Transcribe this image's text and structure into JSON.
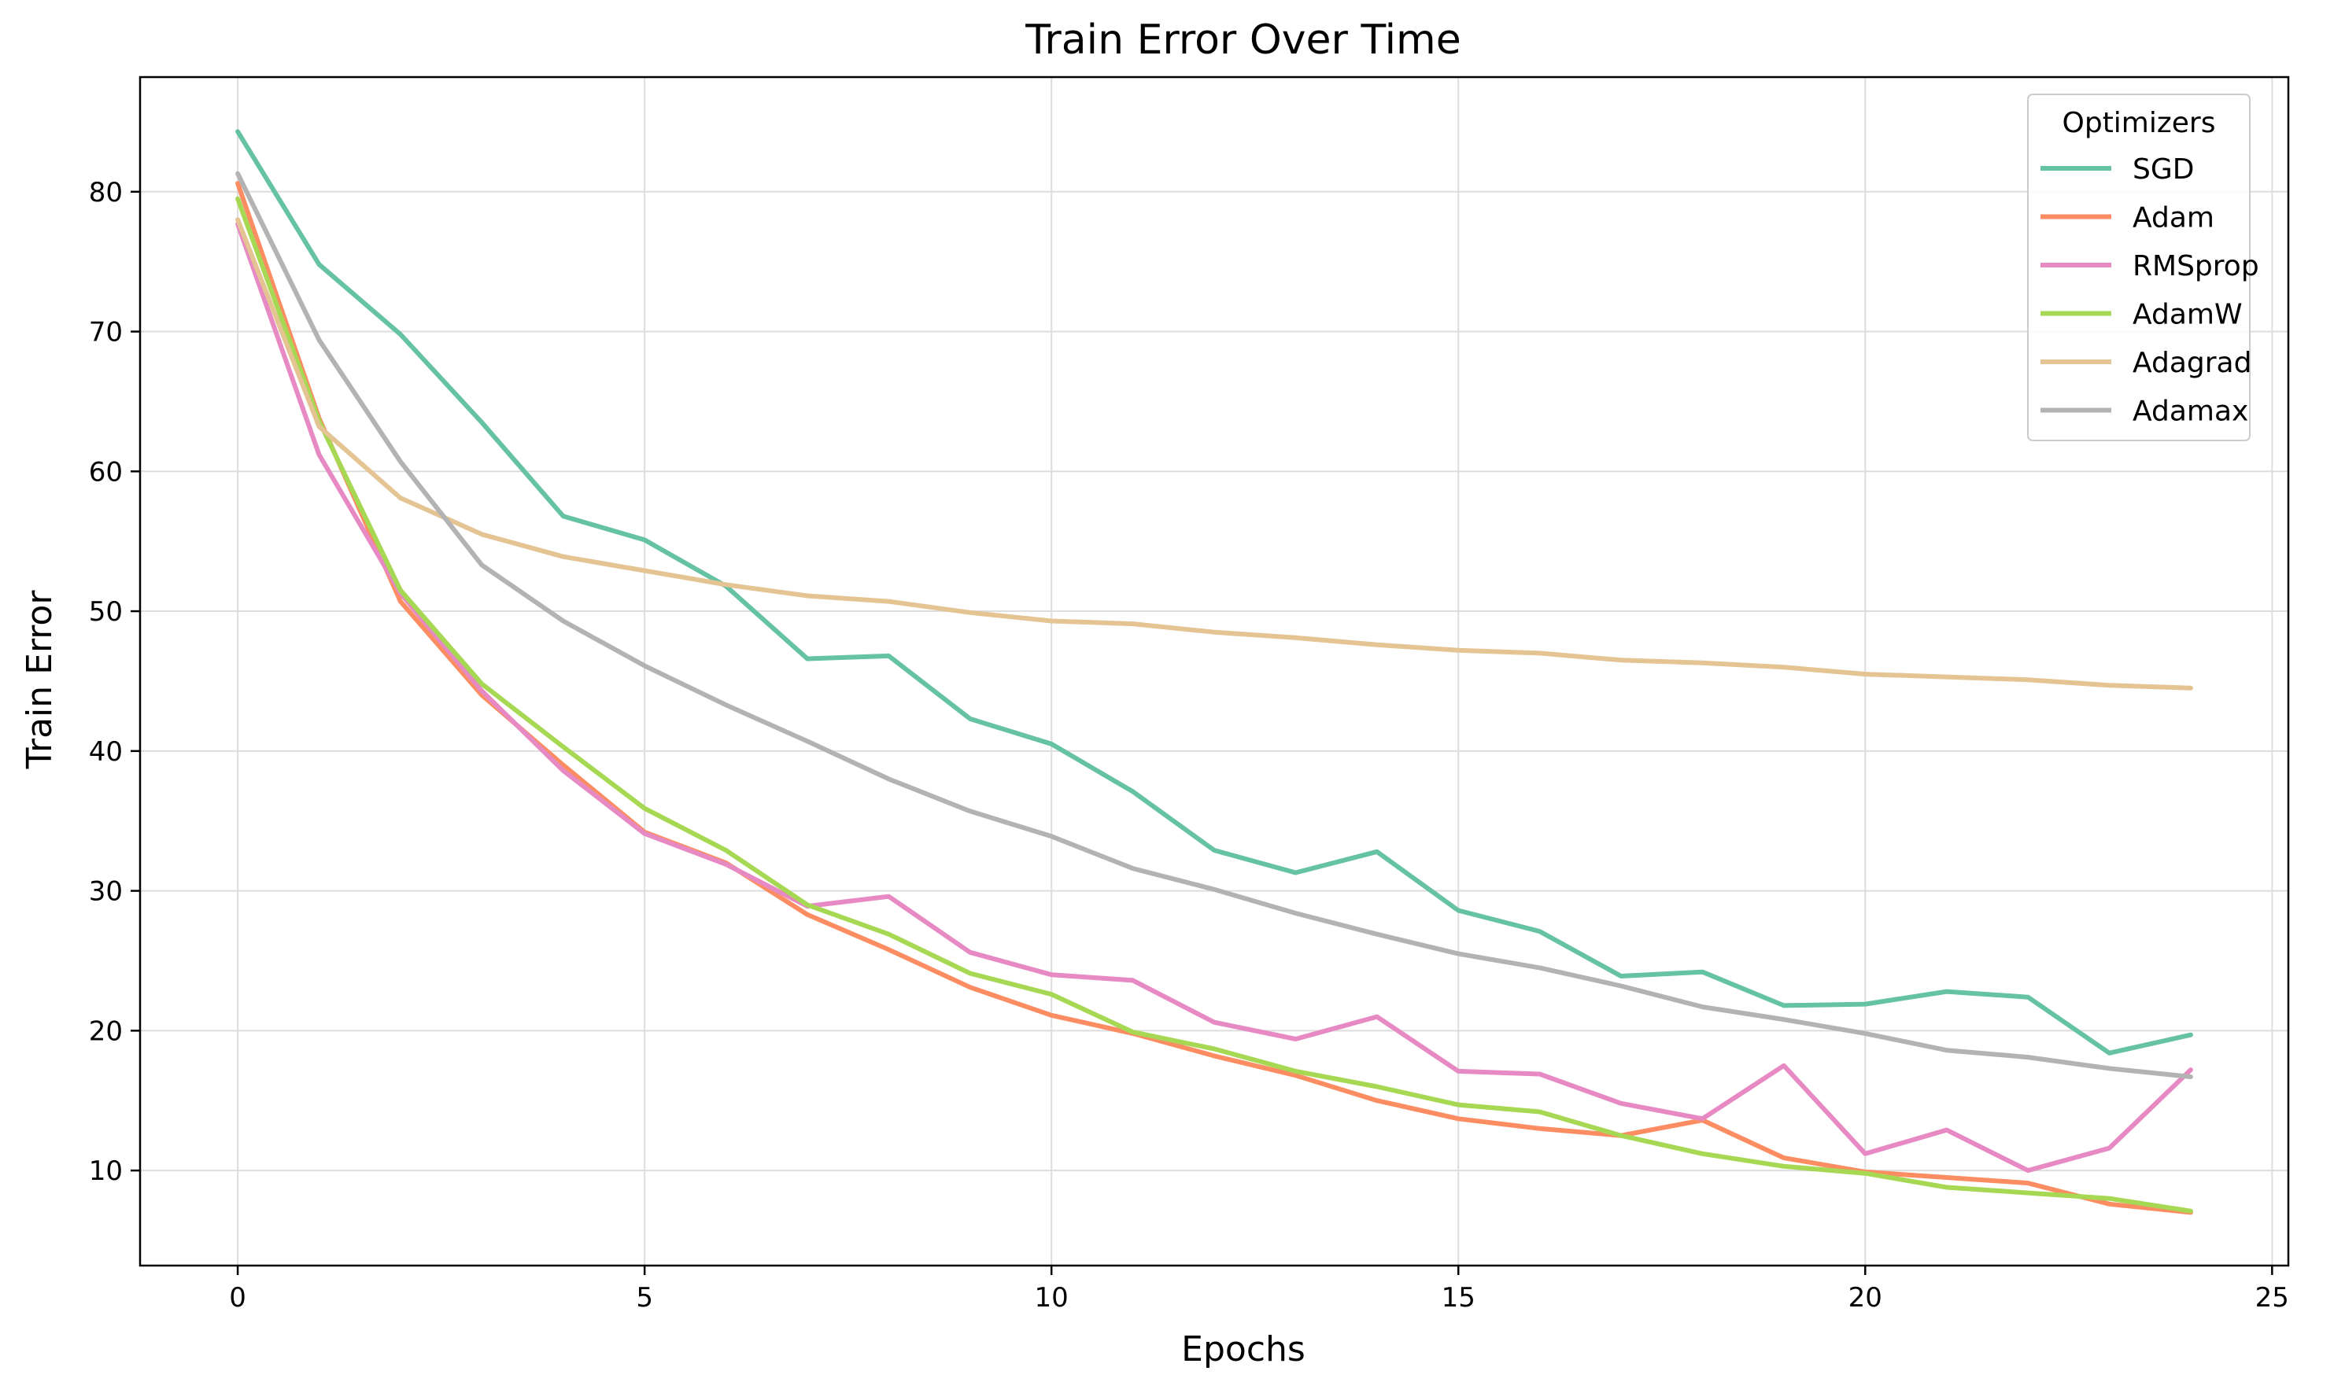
{
  "chart_data": {
    "type": "line",
    "title": "Train Error Over Time",
    "xlabel": "Epochs",
    "ylabel": "Train Error",
    "xlim": [
      -1.2,
      25.2
    ],
    "ylim": [
      3.2,
      88.2
    ],
    "x_ticks": [
      0,
      5,
      10,
      15,
      20,
      25
    ],
    "y_ticks": [
      10,
      20,
      30,
      40,
      50,
      60,
      70,
      80
    ],
    "grid": true,
    "legend_title": "Optimizers",
    "legend_position": "top-right",
    "x": [
      0,
      1,
      2,
      3,
      4,
      5,
      6,
      7,
      8,
      9,
      10,
      11,
      12,
      13,
      14,
      15,
      16,
      17,
      18,
      19,
      20,
      21,
      22,
      23,
      24
    ],
    "series": [
      {
        "name": "SGD",
        "color": "#66c2a5",
        "values": [
          84.3,
          74.8,
          69.8,
          63.5,
          56.8,
          55.1,
          51.8,
          46.6,
          46.8,
          42.3,
          40.5,
          37.1,
          32.9,
          31.3,
          32.8,
          28.6,
          27.1,
          23.9,
          24.2,
          21.8,
          21.9,
          22.8,
          22.4,
          18.4,
          19.7
        ]
      },
      {
        "name": "Adam",
        "color": "#fc8d62",
        "values": [
          80.6,
          63.8,
          50.7,
          44.0,
          39.0,
          34.2,
          32.0,
          28.3,
          25.8,
          23.1,
          21.1,
          19.8,
          18.2,
          16.8,
          15.0,
          13.7,
          13.0,
          12.5,
          13.6,
          10.9,
          9.9,
          9.5,
          9.1,
          7.6,
          7.0
        ]
      },
      {
        "name": "RMSprop",
        "color": "#e78ac3",
        "values": [
          77.7,
          61.2,
          51.3,
          44.3,
          38.6,
          34.1,
          31.9,
          28.9,
          29.6,
          25.6,
          24.0,
          23.6,
          20.6,
          19.4,
          21.0,
          17.1,
          16.9,
          14.8,
          13.7,
          17.5,
          11.2,
          12.9,
          10.0,
          11.6,
          17.2
        ]
      },
      {
        "name": "AdamW",
        "color": "#a6d854",
        "values": [
          79.5,
          63.6,
          51.5,
          44.8,
          40.3,
          35.9,
          32.9,
          29.0,
          26.9,
          24.1,
          22.6,
          19.9,
          18.7,
          17.1,
          16.0,
          14.7,
          14.2,
          12.5,
          11.2,
          10.3,
          9.8,
          8.8,
          8.4,
          8.0,
          7.1
        ]
      },
      {
        "name": "Adagrad",
        "color": "#e5c494",
        "values": [
          78.0,
          63.2,
          58.1,
          55.5,
          53.9,
          52.9,
          51.9,
          51.1,
          50.7,
          49.9,
          49.3,
          49.1,
          48.5,
          48.1,
          47.6,
          47.2,
          47.0,
          46.5,
          46.3,
          46.0,
          45.5,
          45.3,
          45.1,
          44.7,
          44.5
        ]
      },
      {
        "name": "Adamax",
        "color": "#b3b3b3",
        "values": [
          81.3,
          69.4,
          60.7,
          53.3,
          49.3,
          46.1,
          43.3,
          40.7,
          38.0,
          35.7,
          33.9,
          31.6,
          30.1,
          28.4,
          26.9,
          25.5,
          24.5,
          23.2,
          21.7,
          20.8,
          19.8,
          18.6,
          18.1,
          17.3,
          16.7
        ]
      }
    ]
  }
}
